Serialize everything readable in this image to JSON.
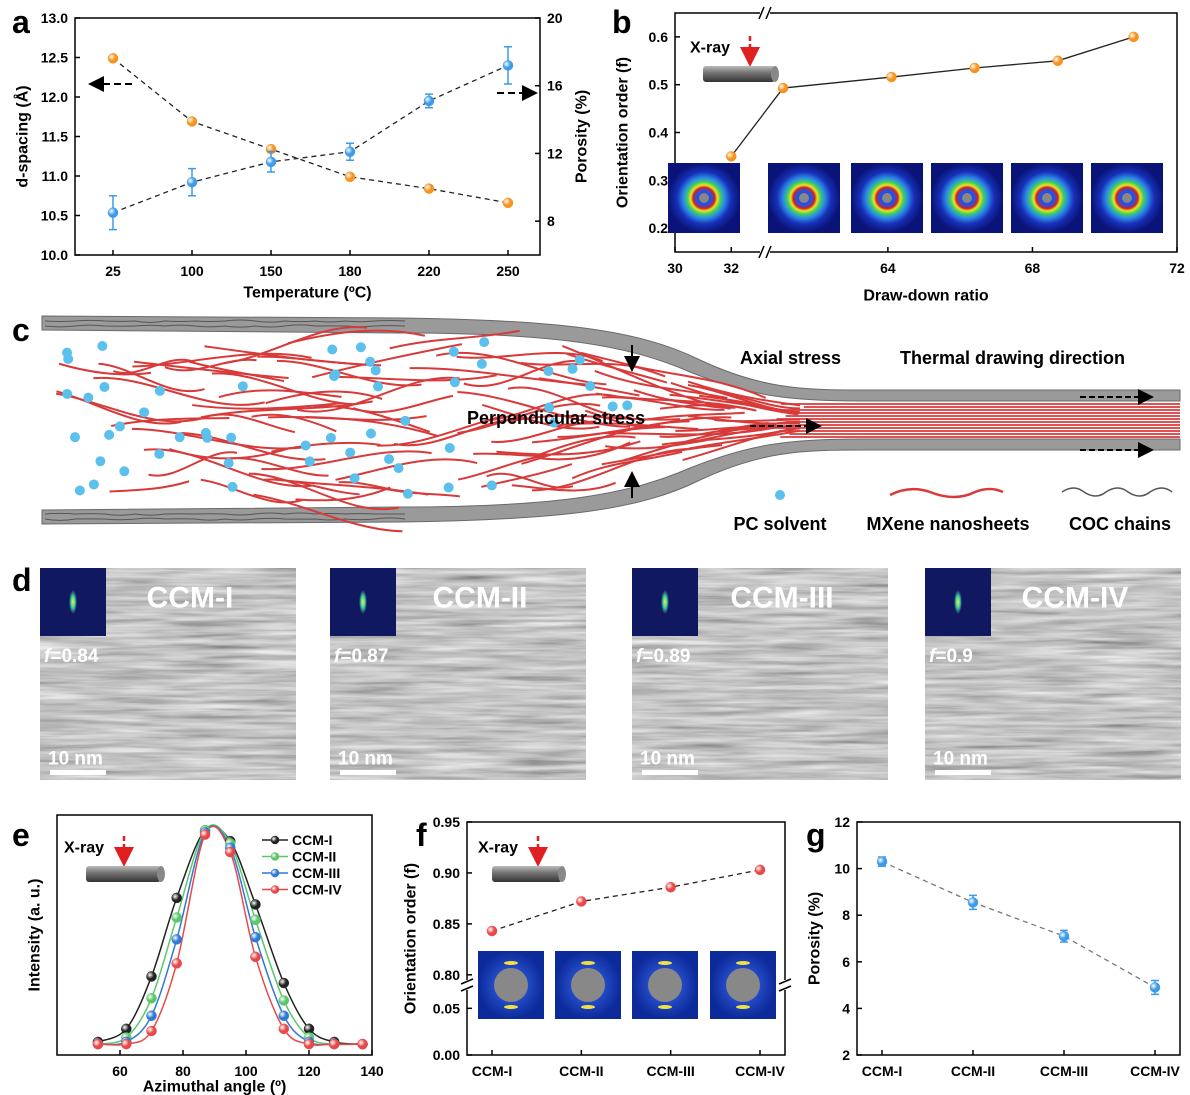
{
  "panel_labels": [
    "a",
    "b",
    "c",
    "d",
    "e",
    "f",
    "g"
  ],
  "chart_data": [
    {
      "type": "line",
      "xlabel": "Temperature (ºC)",
      "ylabel": "d-spacing (Å)",
      "y2label": "Porosity (%)",
      "categories": [
        "25",
        "100",
        "150",
        "180",
        "220",
        "250"
      ],
      "series": [
        {
          "color": "#f7931e",
          "values": [
            12.49,
            11.69,
            11.34,
            10.99,
            10.84,
            10.66
          ]
        },
        {
          "color": "#3d9be9",
          "axis": "y2",
          "values": [
            8.5,
            10.3,
            11.5,
            12.1,
            15.1,
            17.2
          ],
          "errors": [
            1.0,
            0.8,
            0.6,
            0.5,
            0.4,
            1.1
          ]
        }
      ],
      "ylim": [
        10,
        13
      ],
      "yticks": [
        {
          "value": 10,
          "label": "10.0"
        },
        10.5,
        {
          "value": 11,
          "label": "11.0"
        },
        11.5,
        {
          "value": 12,
          "label": "12.0"
        },
        12.5,
        {
          "value": 13,
          "label": "13.0"
        }
      ],
      "y2lim": [
        6,
        20
      ],
      "y2ticks": [
        8,
        12,
        16,
        20
      ]
    },
    {
      "type": "line",
      "xlabel": "Draw-down ratio",
      "ylabel": "Orientation order (f)",
      "annotation": "X-ray",
      "x": [
        32,
        61.1,
        64.1,
        66.4,
        68.7,
        70.8
      ],
      "series": [
        {
          "color": "#f7931e",
          "values": [
            0.35,
            0.493,
            0.516,
            0.535,
            0.55,
            0.6
          ]
        }
      ],
      "xlim": [
        30,
        72
      ],
      "xbreak": [
        33.2,
        60.6
      ],
      "xticks": [
        30,
        32,
        64,
        68,
        72
      ],
      "ylim": [
        0.15,
        0.65
      ],
      "yticks": [
        0.2,
        0.3,
        0.4,
        0.5,
        0.6
      ]
    },
    {
      "type": "spline",
      "xlabel": "Azimuthal angle (º)",
      "ylabel": "Intensity (a. u.)",
      "annotation": "X-ray",
      "x": [
        53,
        62,
        70,
        78,
        87,
        95,
        103,
        112,
        120,
        128,
        137
      ],
      "series": [
        {
          "name": "CCM-I",
          "color": "#222222",
          "values": [
            0.01,
            0.07,
            0.31,
            0.67,
            0.98,
            0.93,
            0.64,
            0.28,
            0.07,
            0.01,
            0
          ]
        },
        {
          "name": "CCM-II",
          "color": "#5cc66a",
          "values": [
            0,
            0.03,
            0.21,
            0.58,
            0.98,
            0.92,
            0.57,
            0.2,
            0.03,
            0,
            0
          ]
        },
        {
          "name": "CCM-III",
          "color": "#2f79d4",
          "values": [
            0,
            0.01,
            0.13,
            0.48,
            0.97,
            0.9,
            0.49,
            0.13,
            0.01,
            0,
            0
          ]
        },
        {
          "name": "CCM-IV",
          "color": "#e8484a",
          "values": [
            0,
            0,
            0.06,
            0.37,
            0.96,
            0.88,
            0.4,
            0.07,
            0,
            0,
            0
          ]
        }
      ],
      "xlim": [
        40,
        140
      ],
      "xticks": [
        60,
        80,
        100,
        120,
        140
      ],
      "ylim": [
        -0.05,
        1.05
      ],
      "legend": "upper right"
    },
    {
      "type": "line",
      "ylabel": "Orientation order (f)",
      "annotation": "X-ray",
      "categories": [
        "CCM-I",
        "CCM-II",
        "CCM-III",
        "CCM-IV"
      ],
      "series": [
        {
          "color": "#e8484a",
          "values": [
            0.843,
            0.872,
            0.886,
            0.903
          ]
        }
      ],
      "ylim": [
        0,
        0.95
      ],
      "ybreak": [
        0.075,
        0.79
      ],
      "yticks": [
        {
          "value": 0,
          "label": "0.00"
        },
        0.05,
        {
          "value": 0.8,
          "label": "0.80"
        },
        0.85,
        {
          "value": 0.9,
          "label": "0.90"
        },
        0.95
      ]
    },
    {
      "type": "line",
      "ylabel": "Porosity (%)",
      "categories": [
        "CCM-I",
        "CCM-II",
        "CCM-III",
        "CCM-IV"
      ],
      "series": [
        {
          "color": "#3d9be9",
          "values": [
            10.3,
            8.55,
            7.1,
            4.9
          ],
          "errors": [
            0.2,
            0.3,
            0.25,
            0.3
          ]
        }
      ],
      "ylim": [
        2,
        12
      ],
      "yticks": [
        2,
        4,
        6,
        8,
        10,
        12
      ]
    }
  ],
  "schematic": {
    "axial_stress": "Axial stress",
    "drawing_direction": "Thermal drawing direction",
    "perpendicular_stress": "Perpendicular stress",
    "legend": [
      "PC solvent",
      "MXene nanosheets",
      "COC chains"
    ]
  },
  "micrographs": [
    {
      "label": "CCM-I",
      "symbol": "f",
      "sign": "=",
      "f": 0.84,
      "scale_bar": "10 nm"
    },
    {
      "label": "CCM-II",
      "symbol": "f",
      "sign": "=",
      "f": 0.87,
      "scale_bar": "10 nm"
    },
    {
      "label": "CCM-III",
      "symbol": "f",
      "sign": "=",
      "f": 0.89,
      "scale_bar": "10 nm"
    },
    {
      "label": "CCM-IV",
      "symbol": "f",
      "sign": "=",
      "f": 0.9,
      "scale_bar": "10 nm"
    }
  ]
}
